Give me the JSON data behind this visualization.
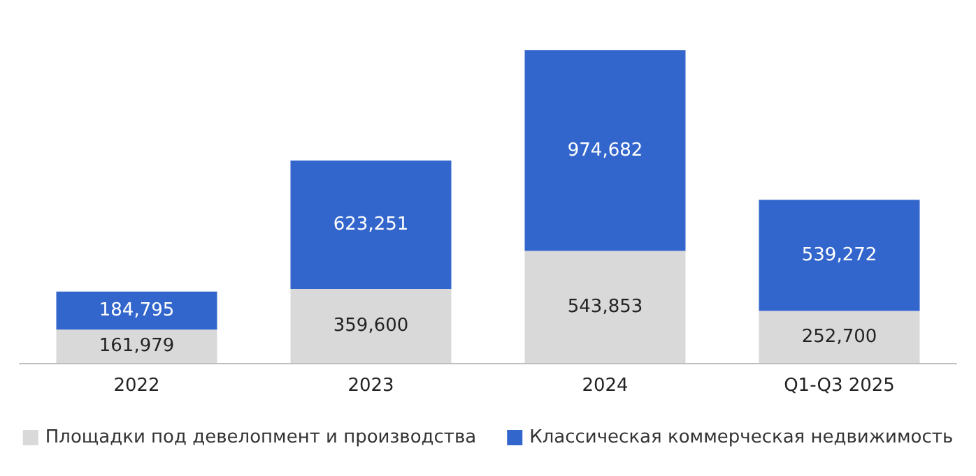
{
  "chart_data": {
    "type": "bar",
    "stacked": true,
    "categories": [
      "2022",
      "2023",
      "2024",
      "Q1-Q3 2025"
    ],
    "series": [
      {
        "name": "Площадки под девелопмент и производства",
        "color": "#d9d9d9",
        "values": [
          161979,
          359600,
          543853,
          252700
        ],
        "value_labels": [
          "161,979",
          "359,600",
          "543,853",
          "252,700"
        ]
      },
      {
        "name": "Классическая коммерческая недвижимость",
        "color": "#3366cc",
        "values": [
          184795,
          623251,
          974682,
          539272
        ],
        "value_labels": [
          "184,795",
          "623,251",
          "974,682",
          "539,272"
        ]
      }
    ],
    "legend": "bottom"
  }
}
